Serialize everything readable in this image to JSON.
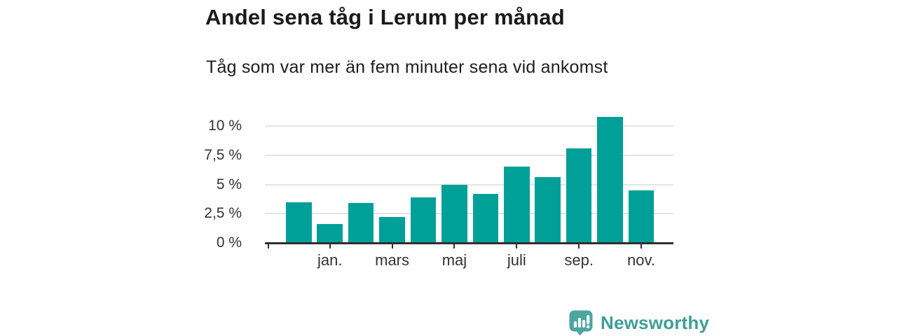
{
  "chart_data": {
    "type": "bar",
    "title": "Andel sena tåg i Lerum per månad",
    "subtitle": "Tåg som var mer än fem minuter sena vid ankomst",
    "unit": "%",
    "categories": [
      "",
      "jan.",
      "",
      "mars",
      "",
      "maj",
      "",
      "juli",
      "",
      "sep.",
      "",
      "nov."
    ],
    "values": [
      3.5,
      1.6,
      3.4,
      2.2,
      3.9,
      5.0,
      4.2,
      6.5,
      5.6,
      8.1,
      10.8,
      4.5
    ],
    "y_ticks": [
      {
        "value": 0,
        "label": "0 %"
      },
      {
        "value": 2.5,
        "label": "2,5 %"
      },
      {
        "value": 5,
        "label": "5 %"
      },
      {
        "value": 7.5,
        "label": "7,5 %"
      },
      {
        "value": 10,
        "label": "10 %"
      }
    ],
    "ylim": [
      0,
      11.2
    ],
    "grid": "horizontal",
    "legend": "none",
    "bar_color": "#00a098",
    "axis_color": "#2f2f2f",
    "grid_color": "#e4e4e4",
    "tick_label_color": "#333333"
  },
  "branding": {
    "logo_text": "Newsworthy",
    "logo_icon": "bar-chart-speech-bubble-icon",
    "logo_icon_color": "#4aa69f",
    "logo_text_color": "#3e9e97"
  }
}
